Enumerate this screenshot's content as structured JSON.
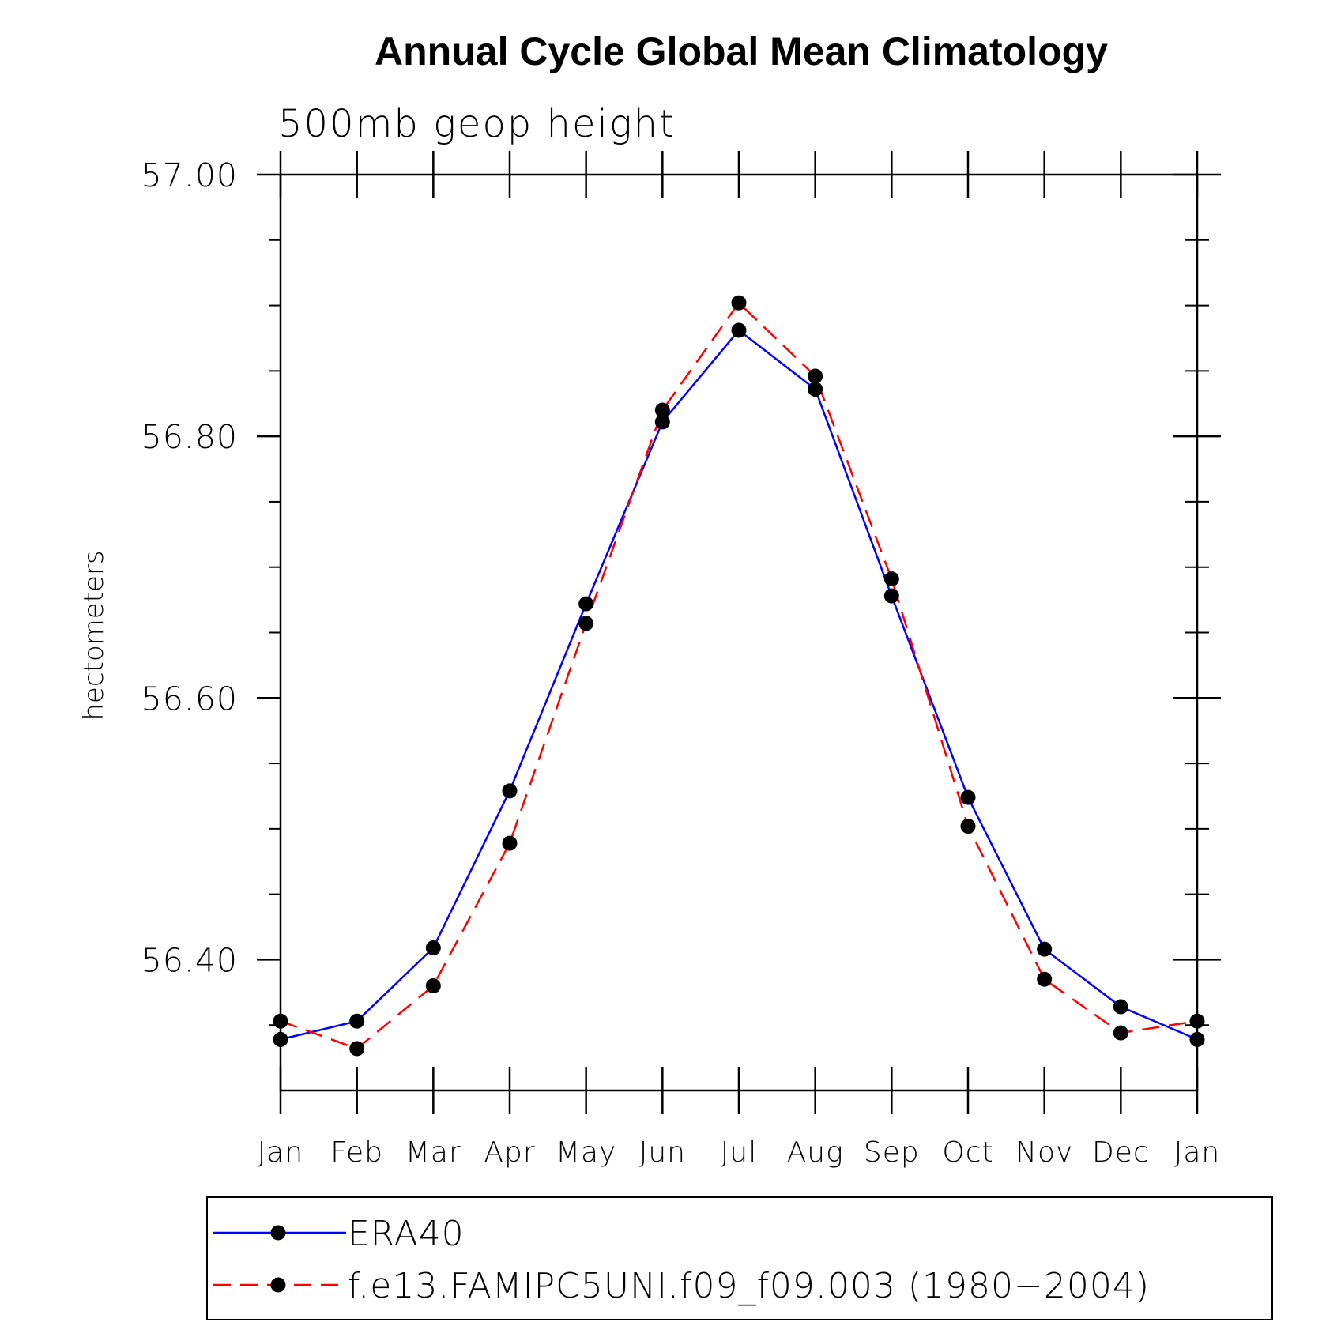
{
  "chart_data": {
    "type": "line",
    "title": "Annual Cycle Global Mean Climatology",
    "subtitle": "500mb geop height",
    "ylabel": "hectometers",
    "xlabel": "",
    "categories": [
      "Jan",
      "Feb",
      "Mar",
      "Apr",
      "May",
      "Jun",
      "Jul",
      "Aug",
      "Sep",
      "Oct",
      "Nov",
      "Dec",
      "Jan"
    ],
    "ylim": [
      56.3,
      57.0
    ],
    "yticks_major": [
      "56.40",
      "56.60",
      "56.80",
      "57.00"
    ],
    "yticks_major_values": [
      56.4,
      56.6,
      56.8,
      57.0
    ],
    "yticks_minor_values": [
      56.35,
      56.45,
      56.5,
      56.55,
      56.65,
      56.7,
      56.75,
      56.85,
      56.9,
      56.95
    ],
    "grid": false,
    "legend_position": "bottom",
    "series": [
      {
        "name": "ERA40",
        "color": "#0000ff",
        "style": "solid",
        "marker": "circle",
        "values": [
          56.339,
          56.353,
          56.409,
          56.529,
          56.672,
          56.811,
          56.881,
          56.836,
          56.678,
          56.524,
          56.408,
          56.364,
          56.339
        ]
      },
      {
        "name": "f.e13.FAMIPC5UNI.f09_f09.003 (1980−2004)",
        "color": "#ff0000",
        "style": "dashed",
        "marker": "circle",
        "values": [
          56.353,
          56.332,
          56.38,
          56.489,
          56.657,
          56.82,
          56.902,
          56.846,
          56.691,
          56.502,
          56.385,
          56.344,
          56.353
        ]
      }
    ]
  }
}
